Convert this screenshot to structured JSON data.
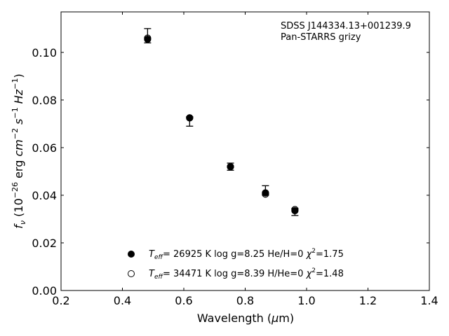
{
  "chart_data": {
    "type": "scatter",
    "title": "",
    "annotation_lines": [
      "SDSS J144334.13+001239.9",
      "Pan-STARRS grizy"
    ],
    "xlabel": {
      "text": "Wavelength (",
      "math": "μ",
      "tail": "m)"
    },
    "ylabel": {
      "text": "f",
      "sub": "ν",
      "open": " (10",
      "exp1": "−26",
      "unit1": " erg ",
      "unit2": "cm",
      "exp2": "−2",
      "unit3": " s",
      "exp3": "−1",
      "unit4": " Hz",
      "exp4": "−1",
      "close": ")"
    },
    "xlim": [
      0.2,
      1.4
    ],
    "ylim": [
      0.0,
      0.117
    ],
    "xticks": [
      0.2,
      0.4,
      0.6,
      0.8,
      1.0,
      1.2,
      1.4
    ],
    "xtick_labels": [
      "0.2",
      "0.4",
      "0.6",
      "0.8",
      "1.0",
      "1.2",
      "1.4"
    ],
    "yticks": [
      0.0,
      0.02,
      0.04,
      0.06,
      0.08,
      0.1
    ],
    "ytick_labels": [
      "0.00",
      "0.02",
      "0.04",
      "0.06",
      "0.08",
      "0.10"
    ],
    "grid": false,
    "legend_position": "bottom-center",
    "observed": {
      "x": [
        0.482,
        0.619,
        0.752,
        0.866,
        0.962
      ],
      "y": [
        0.1065,
        0.0715,
        0.052,
        0.0405,
        0.0335
      ],
      "yerr_low": [
        0.0025,
        0.0025,
        0.0015,
        0.0005,
        0.002
      ],
      "yerr_high": [
        0.0035,
        0.0015,
        0.0015,
        0.0035,
        0.001
      ]
    },
    "series": [
      {
        "name": "Teff= 26925 K  log g=8.25  He/H=0  χ2=1.75",
        "marker": "filled",
        "label_parts": {
          "t": "T",
          "sub": "eff",
          "main": "= 26925 K  log g=8.25  He/H=0  ",
          "chi": "χ",
          "sup": "2",
          "end": "=1.75"
        },
        "x": [
          0.482,
          0.619,
          0.752,
          0.866,
          0.962
        ],
        "y": [
          0.1055,
          0.0725,
          0.052,
          0.041,
          0.0335
        ]
      },
      {
        "name": "Teff= 34471 K  log g=8.39  H/He=0  χ2=1.48",
        "marker": "open",
        "label_parts": {
          "t": "T",
          "sub": "eff",
          "main": "= 34471 K  log g=8.39  H/He=0  ",
          "chi": "χ",
          "sup": "2",
          "end": "=1.48"
        },
        "x": [
          0.482,
          0.619,
          0.752,
          0.866,
          0.962
        ],
        "y": [
          0.106,
          0.0725,
          0.052,
          0.0405,
          0.034
        ]
      }
    ]
  }
}
